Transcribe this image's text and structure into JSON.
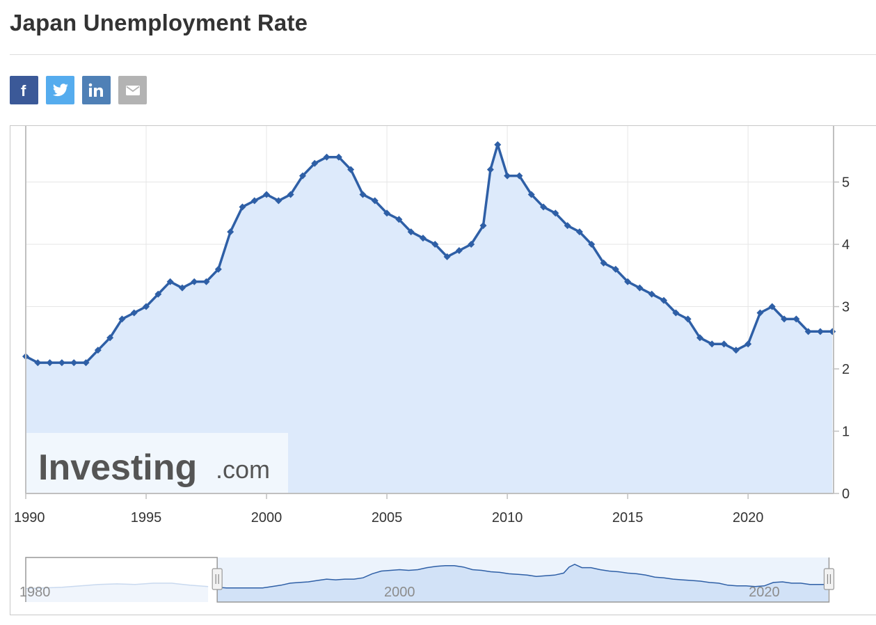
{
  "page": {
    "title": "Japan Unemployment Rate"
  },
  "share": [
    {
      "name": "facebook-share-button",
      "icon": "facebook-icon",
      "color": "#3b5998",
      "glyph": "f"
    },
    {
      "name": "twitter-share-button",
      "icon": "twitter-icon",
      "color": "#55acee",
      "glyph": "t"
    },
    {
      "name": "linkedin-share-button",
      "icon": "linkedin-icon",
      "color": "#4f80b6",
      "glyph": "in"
    },
    {
      "name": "email-share-button",
      "icon": "email-icon",
      "color": "#b3b3b3",
      "glyph": "mail"
    }
  ],
  "watermark": {
    "brand": "Investing",
    "suffix": ".com"
  },
  "chart_data": {
    "type": "line",
    "style": "area with markers",
    "colors": {
      "line": "#2e5fa6",
      "fill": "#ddeafb",
      "grid": "#e6e6e6",
      "axis": "#c0c0c0"
    },
    "x_ticks": [
      "1990",
      "1995",
      "2000",
      "2005",
      "2010",
      "2015",
      "2020"
    ],
    "y_ticks": [
      "0",
      "1",
      "2",
      "3",
      "4",
      "5"
    ],
    "xlim": [
      1990.0,
      2023.55
    ],
    "ylim": [
      0,
      5.9
    ],
    "y_axis_side": "right",
    "grid": true,
    "x": [
      1990.0,
      1990.5,
      1991.0,
      1991.5,
      1992.0,
      1992.5,
      1993.0,
      1993.5,
      1994.0,
      1994.5,
      1995.0,
      1995.5,
      1996.0,
      1996.5,
      1997.0,
      1997.5,
      1998.0,
      1998.5,
      1999.0,
      1999.5,
      2000.0,
      2000.5,
      2001.0,
      2001.5,
      2002.0,
      2002.5,
      2003.0,
      2003.5,
      2004.0,
      2004.5,
      2005.0,
      2005.5,
      2006.0,
      2006.5,
      2007.0,
      2007.5,
      2008.0,
      2008.5,
      2009.0,
      2009.3,
      2009.6,
      2010.0,
      2010.5,
      2011.0,
      2011.5,
      2012.0,
      2012.5,
      2013.0,
      2013.5,
      2014.0,
      2014.5,
      2015.0,
      2015.5,
      2016.0,
      2016.5,
      2017.0,
      2017.5,
      2018.0,
      2018.5,
      2019.0,
      2019.5,
      2020.0,
      2020.5,
      2021.0,
      2021.5,
      2022.0,
      2022.5,
      2023.0,
      2023.5
    ],
    "values": [
      2.2,
      2.1,
      2.1,
      2.1,
      2.1,
      2.1,
      2.3,
      2.5,
      2.8,
      2.9,
      3.0,
      3.2,
      3.4,
      3.3,
      3.4,
      3.4,
      3.6,
      4.2,
      4.6,
      4.7,
      4.8,
      4.7,
      4.8,
      5.1,
      5.3,
      5.4,
      5.4,
      5.2,
      4.8,
      4.7,
      4.5,
      4.4,
      4.2,
      4.1,
      4.0,
      3.8,
      3.9,
      4.0,
      4.3,
      5.2,
      5.6,
      5.1,
      5.1,
      4.8,
      4.6,
      4.5,
      4.3,
      4.2,
      4.0,
      3.7,
      3.6,
      3.4,
      3.3,
      3.2,
      3.1,
      2.9,
      2.8,
      2.5,
      2.4,
      2.4,
      2.3,
      2.4,
      2.9,
      3.0,
      2.8,
      2.8,
      2.6,
      2.6,
      2.6
    ],
    "navigator": {
      "x_ticks": [
        "1980",
        "2000",
        "2020"
      ],
      "xlim": [
        1979.5,
        2023.8
      ],
      "selected_range": [
        1990.0,
        2023.55
      ],
      "pre_x": [
        1979.5,
        1980.5,
        1981.5,
        1982.5,
        1983.5,
        1984.5,
        1985.5,
        1986.5,
        1987.5,
        1988.5,
        1989.5
      ],
      "pre_values": [
        2.0,
        2.1,
        2.2,
        2.4,
        2.6,
        2.7,
        2.6,
        2.8,
        2.8,
        2.5,
        2.3
      ]
    }
  }
}
